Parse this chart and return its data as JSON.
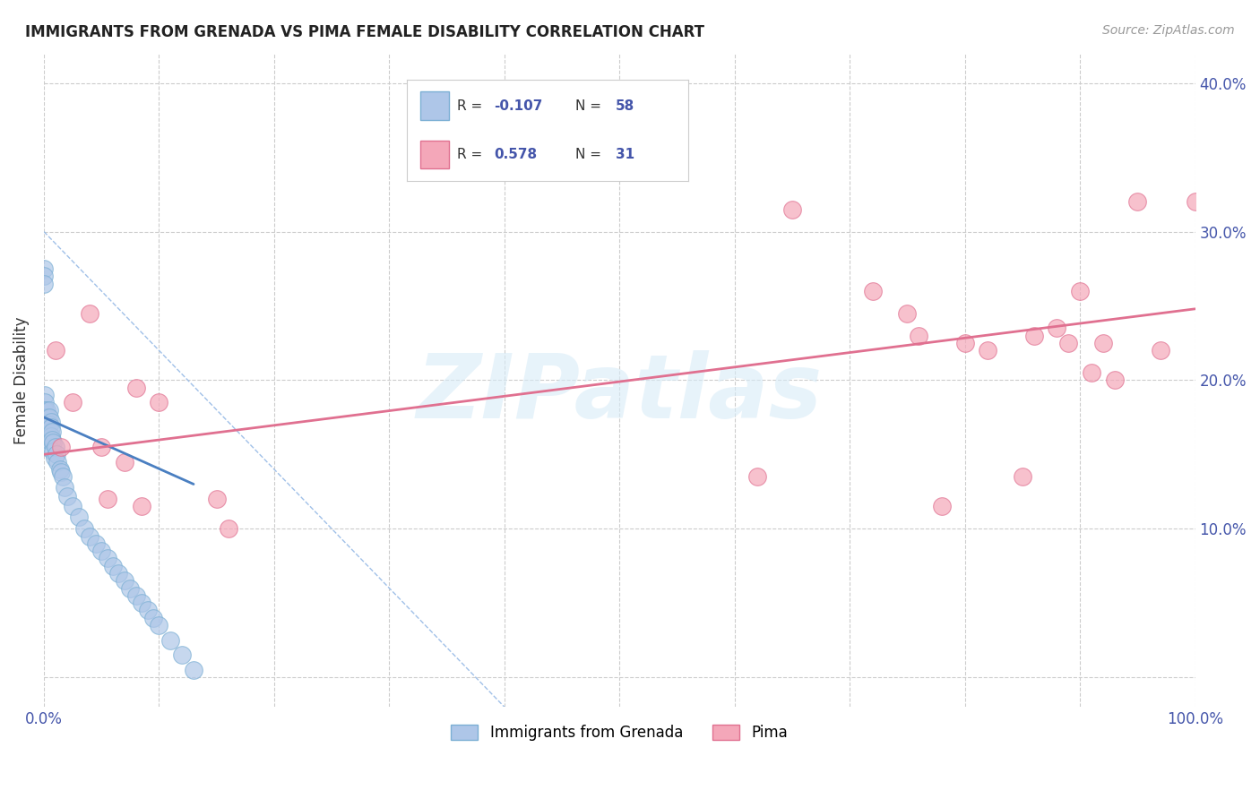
{
  "title": "IMMIGRANTS FROM GRENADA VS PIMA FEMALE DISABILITY CORRELATION CHART",
  "source": "Source: ZipAtlas.com",
  "ylabel": "Female Disability",
  "xlim": [
    0.0,
    1.0
  ],
  "ylim": [
    -0.02,
    0.42
  ],
  "x_ticks": [
    0.0,
    0.1,
    0.2,
    0.3,
    0.4,
    0.5,
    0.6,
    0.7,
    0.8,
    0.9,
    1.0
  ],
  "x_tick_labels": [
    "0.0%",
    "",
    "",
    "",
    "",
    "",
    "",
    "",
    "",
    "",
    "100.0%"
  ],
  "y_ticks": [
    0.0,
    0.1,
    0.2,
    0.3,
    0.4
  ],
  "y_tick_labels_right": [
    "",
    "10.0%",
    "20.0%",
    "30.0%",
    "40.0%"
  ],
  "background_color": "#ffffff",
  "grid_color": "#cccccc",
  "watermark_text": "ZIPatlas",
  "color_blue_fill": "#aec6e8",
  "color_blue_edge": "#7bafd4",
  "color_pink_fill": "#f4a7b9",
  "color_pink_edge": "#e07090",
  "line_blue_color": "#4a7fc1",
  "line_pink_color": "#e07090",
  "line_dashed_color": "#a0c0e8",
  "blue_points_x": [
    0.0,
    0.0,
    0.0,
    0.001,
    0.001,
    0.001,
    0.001,
    0.001,
    0.001,
    0.002,
    0.002,
    0.002,
    0.002,
    0.002,
    0.002,
    0.003,
    0.003,
    0.003,
    0.004,
    0.004,
    0.005,
    0.005,
    0.005,
    0.006,
    0.006,
    0.006,
    0.007,
    0.007,
    0.008,
    0.008,
    0.009,
    0.01,
    0.011,
    0.012,
    0.014,
    0.015,
    0.016,
    0.018,
    0.02,
    0.025,
    0.03,
    0.035,
    0.04,
    0.045,
    0.05,
    0.055,
    0.06,
    0.065,
    0.07,
    0.075,
    0.08,
    0.085,
    0.09,
    0.095,
    0.1,
    0.11,
    0.12,
    0.13
  ],
  "blue_points_y": [
    0.275,
    0.27,
    0.265,
    0.19,
    0.185,
    0.18,
    0.175,
    0.17,
    0.165,
    0.18,
    0.175,
    0.17,
    0.165,
    0.16,
    0.155,
    0.175,
    0.168,
    0.162,
    0.165,
    0.16,
    0.18,
    0.175,
    0.17,
    0.172,
    0.168,
    0.162,
    0.165,
    0.16,
    0.158,
    0.152,
    0.148,
    0.155,
    0.15,
    0.145,
    0.14,
    0.138,
    0.135,
    0.128,
    0.122,
    0.115,
    0.108,
    0.1,
    0.095,
    0.09,
    0.085,
    0.08,
    0.075,
    0.07,
    0.065,
    0.06,
    0.055,
    0.05,
    0.045,
    0.04,
    0.035,
    0.025,
    0.015,
    0.005
  ],
  "pink_points_x": [
    0.01,
    0.015,
    0.025,
    0.04,
    0.05,
    0.055,
    0.07,
    0.08,
    0.085,
    0.1,
    0.15,
    0.16,
    0.62,
    0.65,
    0.72,
    0.75,
    0.76,
    0.78,
    0.8,
    0.82,
    0.85,
    0.86,
    0.88,
    0.89,
    0.9,
    0.91,
    0.92,
    0.93,
    0.95,
    0.97,
    1.0
  ],
  "pink_points_y": [
    0.22,
    0.155,
    0.185,
    0.245,
    0.155,
    0.12,
    0.145,
    0.195,
    0.115,
    0.185,
    0.12,
    0.1,
    0.135,
    0.315,
    0.26,
    0.245,
    0.23,
    0.115,
    0.225,
    0.22,
    0.135,
    0.23,
    0.235,
    0.225,
    0.26,
    0.205,
    0.225,
    0.2,
    0.32,
    0.22,
    0.32
  ],
  "blue_line_x": [
    0.0,
    0.13
  ],
  "blue_line_y": [
    0.175,
    0.13
  ],
  "pink_line_x": [
    0.0,
    1.0
  ],
  "pink_line_y": [
    0.15,
    0.248
  ],
  "dashed_line_x": [
    0.0,
    0.4
  ],
  "dashed_line_y": [
    0.3,
    -0.02
  ],
  "legend_labels": [
    "Immigrants from Grenada",
    "Pima"
  ]
}
